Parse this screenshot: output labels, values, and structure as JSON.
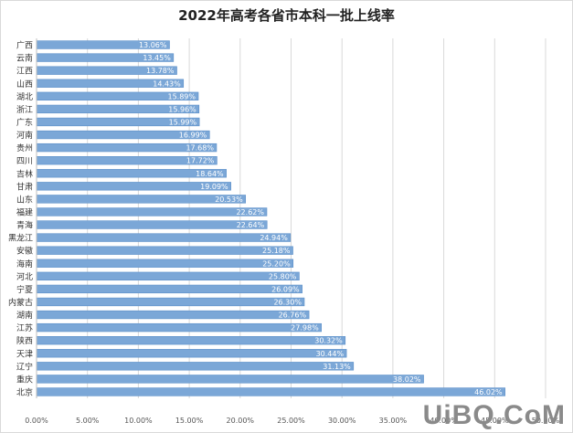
{
  "watermark": "UiBQ.CoM",
  "chart_data": {
    "type": "bar",
    "orientation": "horizontal",
    "title": "2022年高考各省市本科一批上线率",
    "categories": [
      "广西",
      "云南",
      "江西",
      "山西",
      "湖北",
      "浙江",
      "广东",
      "河南",
      "贵州",
      "四川",
      "吉林",
      "甘肃",
      "山东",
      "福建",
      "青海",
      "黑龙江",
      "安徽",
      "海南",
      "河北",
      "宁夏",
      "内蒙古",
      "湖南",
      "江苏",
      "陕西",
      "天津",
      "辽宁",
      "重庆",
      "北京"
    ],
    "values": [
      13.06,
      13.45,
      13.78,
      14.43,
      15.89,
      15.96,
      15.99,
      16.99,
      17.68,
      17.72,
      18.64,
      19.09,
      20.53,
      22.62,
      22.64,
      24.94,
      25.18,
      25.2,
      25.8,
      26.09,
      26.3,
      26.76,
      27.98,
      30.32,
      30.44,
      31.13,
      38.02,
      46.02
    ],
    "data_labels": [
      "13.06%",
      "13.45%",
      "13.78%",
      "14.43%",
      "15.89%",
      "15.96%",
      "15.99%",
      "16.99%",
      "17.68%",
      "17.72%",
      "18.64%",
      "19.09%",
      "20.53%",
      "22.62%",
      "22.64%",
      "24.94%",
      "25.18%",
      "25.20%",
      "25.80%",
      "26.09%",
      "26.30%",
      "26.76%",
      "27.98%",
      "30.32%",
      "30.44%",
      "31.13%",
      "38.02%",
      "46.02%"
    ],
    "xlim": [
      0,
      50
    ],
    "xticks": [
      "0.00%",
      "5.00%",
      "10.00%",
      "15.00%",
      "20.00%",
      "25.00%",
      "30.00%",
      "35.00%",
      "40.00%",
      "45.00%",
      "50.00%"
    ],
    "xlabel": "",
    "ylabel": "",
    "grid": true,
    "legend": "none",
    "bar_color": "#7ba7d7",
    "bar_edge_color": "#5b8fc9",
    "label_color": "#ffffff",
    "grid_color": "#d9d9d9"
  }
}
